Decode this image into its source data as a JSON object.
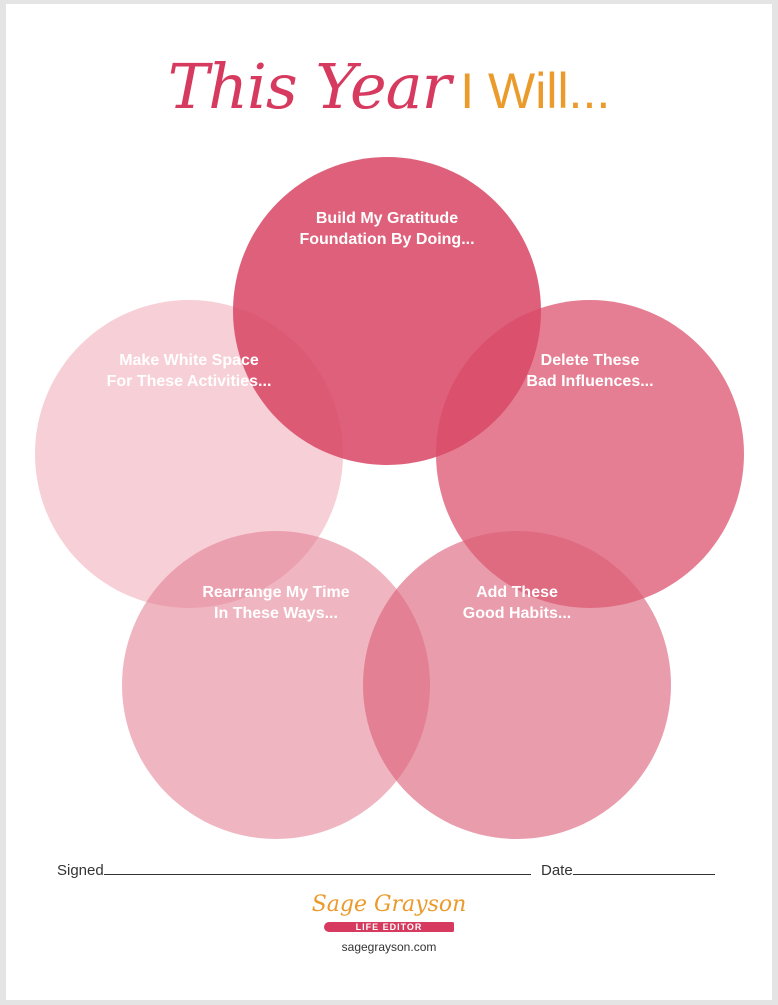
{
  "title": {
    "script": "This Year",
    "plain": "I Will..."
  },
  "circles": [
    {
      "id": "gratitude",
      "line1": "Build My Gratitude",
      "line2": "Foundation By Doing...",
      "color": "#da4a68",
      "opacity": 0.88
    },
    {
      "id": "white-space",
      "line1": "Make White Space",
      "line2": "For These Activities...",
      "color": "#ef9fae",
      "opacity": 0.5
    },
    {
      "id": "delete",
      "line1": "Delete These",
      "line2": "Bad Influences...",
      "color": "#db4c68",
      "opacity": 0.72
    },
    {
      "id": "rearrange",
      "line1": "Rearrange My Time",
      "line2": "In These Ways...",
      "color": "#e27a90",
      "opacity": 0.55
    },
    {
      "id": "habits",
      "line1": "Add These",
      "line2": "Good Habits...",
      "color": "#dc5f78",
      "opacity": 0.62
    }
  ],
  "footer": {
    "signed_label": "Signed",
    "date_label": "Date"
  },
  "brand": {
    "name": "Sage Grayson",
    "tag": "LIFE EDITOR",
    "url": "sagegrayson.com"
  }
}
